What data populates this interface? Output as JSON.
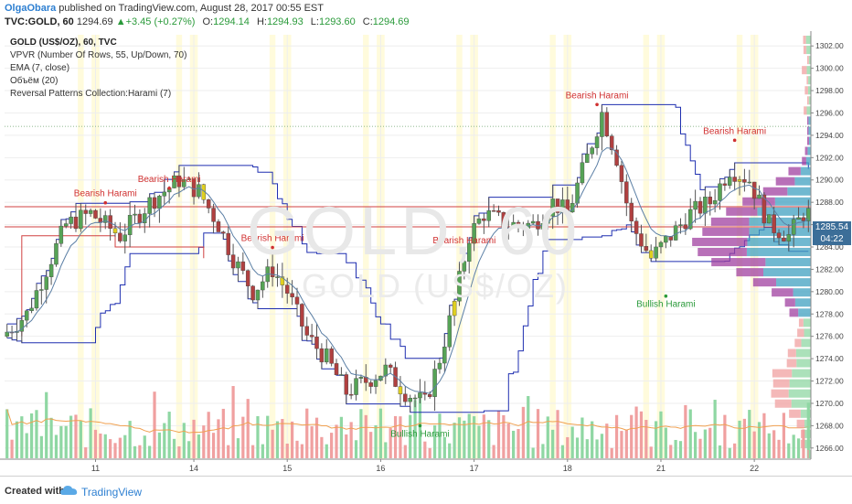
{
  "header": {
    "author": "OlgaObara",
    "published": " published on TradingView.com, August 28, 2017 00:55 EST",
    "symbol": "TVC:GOLD, 60",
    "last": "1294.69",
    "change": "+3.45 (+0.27%)",
    "ohlc": [
      {
        "label": "O:",
        "value": "1294.14"
      },
      {
        "label": "H:",
        "value": "1294.93"
      },
      {
        "label": "L:",
        "value": "1293.60"
      },
      {
        "label": "C:",
        "value": "1294.69"
      }
    ]
  },
  "legend": [
    "GOLD (US$/OZ), 60, TVC",
    "VPVR (Number Of Rows, 55, Up/Down, 70)",
    "EMA (7, close)",
    "Объём (20)",
    "Reversal Patterns Collection:Harami (7)"
  ],
  "watermark": {
    "line1": "GOLD, 60",
    "line2": "GOLD (US$/OZ)"
  },
  "price_tag": {
    "value": "1285.54",
    "countdown": "04:22"
  },
  "footer": {
    "created": "Created with",
    "brand": "TradingView"
  },
  "colors": {
    "up": "#56a356",
    "down": "#b04040",
    "doji_yellow": "#e0d020",
    "channel": "#1f2fb0",
    "ema": "#5b7fa5",
    "redline": "#d04040",
    "vp_up": "#40a0c0",
    "vp_down": "#a040a0",
    "vol_up": "#8fd7a3",
    "vol_down": "#f0a0a0",
    "highlight": "#fffbdc",
    "label_bear": "#d03030",
    "label_bull": "#2a9a3a"
  },
  "chart_data": {
    "type": "candlestick",
    "ylim": [
      1265,
      1303
    ],
    "y_ticks": [
      "1302.00",
      "1300.00",
      "1298.00",
      "1296.00",
      "1294.00",
      "1292.00",
      "1290.00",
      "1288.00",
      "1286.00",
      "1284.00",
      "1282.00",
      "1280.00",
      "1278.00",
      "1276.00",
      "1274.00",
      "1272.00",
      "1270.00",
      "1268.00",
      "1266.00"
    ],
    "x_labels": [
      {
        "label": "11",
        "bar": 18
      },
      {
        "label": "14",
        "bar": 38
      },
      {
        "label": "15",
        "bar": 57
      },
      {
        "label": "16",
        "bar": 76
      },
      {
        "label": "17",
        "bar": 95
      },
      {
        "label": "18",
        "bar": 114
      },
      {
        "label": "21",
        "bar": 133
      },
      {
        "label": "22",
        "bar": 152
      }
    ],
    "harami_labels": [
      {
        "text": "Bearish Harami",
        "bar": 20,
        "price": 1288.2,
        "kind": "bear"
      },
      {
        "text": "Bearish Harami",
        "bar": 33,
        "price": 1289.5,
        "kind": "bear"
      },
      {
        "text": "Bearish Harami",
        "bar": 54,
        "price": 1284.2,
        "kind": "bear"
      },
      {
        "text": "Bearish Harami",
        "bar": 93,
        "price": 1284.0,
        "kind": "bear"
      },
      {
        "text": "Bearish Harami",
        "bar": 120,
        "price": 1297.0,
        "kind": "bear"
      },
      {
        "text": "Bearish Harami",
        "bar": 148,
        "price": 1293.8,
        "kind": "bear"
      },
      {
        "text": "Bullish Harami",
        "bar": 84,
        "price": 1268.0,
        "kind": "bull"
      },
      {
        "text": "Bullish Harami",
        "bar": 134,
        "price": 1279.6,
        "kind": "bull"
      }
    ],
    "anchors": [
      [
        0,
        1276
      ],
      [
        5,
        1278
      ],
      [
        9,
        1282
      ],
      [
        13,
        1286
      ],
      [
        18,
        1287
      ],
      [
        24,
        1285
      ],
      [
        30,
        1288
      ],
      [
        36,
        1290
      ],
      [
        40,
        1289
      ],
      [
        44,
        1286
      ],
      [
        47,
        1283
      ],
      [
        51,
        1280
      ],
      [
        55,
        1282
      ],
      [
        58,
        1280
      ],
      [
        62,
        1276
      ],
      [
        66,
        1274
      ],
      [
        70,
        1271
      ],
      [
        74,
        1272
      ],
      [
        78,
        1273
      ],
      [
        82,
        1271
      ],
      [
        86,
        1270
      ],
      [
        89,
        1274
      ],
      [
        92,
        1279
      ],
      [
        95,
        1285
      ],
      [
        98,
        1287
      ],
      [
        103,
        1286
      ],
      [
        108,
        1286
      ],
      [
        112,
        1288
      ],
      [
        115,
        1287
      ],
      [
        119,
        1292
      ],
      [
        122,
        1296
      ],
      [
        125,
        1292
      ],
      [
        128,
        1286
      ],
      [
        132,
        1283
      ],
      [
        136,
        1285
      ],
      [
        140,
        1287
      ],
      [
        144,
        1288
      ],
      [
        148,
        1291
      ],
      [
        152,
        1290
      ],
      [
        156,
        1286
      ],
      [
        160,
        1285
      ],
      [
        163,
        1287
      ]
    ]
  }
}
